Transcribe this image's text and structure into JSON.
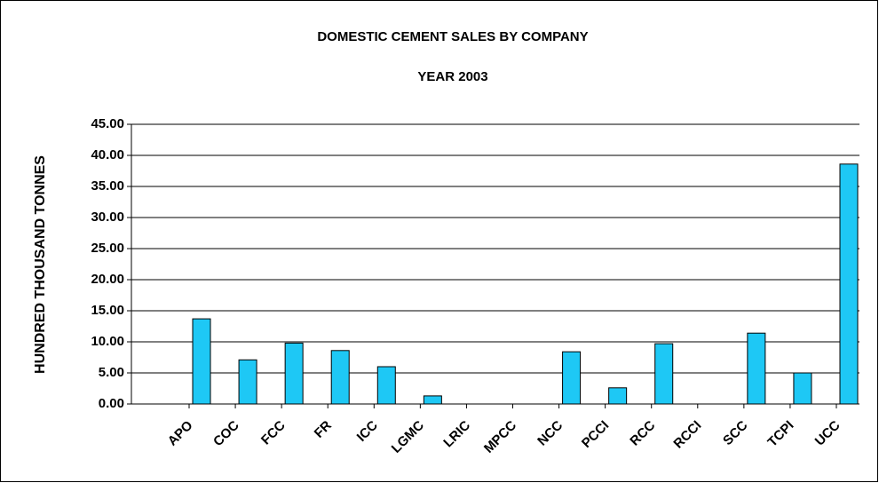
{
  "chart_data": {
    "type": "bar",
    "title": "DOMESTIC CEMENT SALES BY COMPANY",
    "subtitle": "YEAR 2003",
    "y_label": "HUNDRED THOUSAND TONNES",
    "categories": [
      "APO",
      "COC",
      "FCC",
      "FR",
      "ICC",
      "LGMC",
      "LRIC",
      "MPCC",
      "NCC",
      "PCCI",
      "RCC",
      "RCCI",
      "SCC",
      "TCPI",
      "UCC"
    ],
    "values": [
      13.7,
      7.1,
      9.8,
      8.6,
      6.0,
      1.3,
      0,
      0,
      8.4,
      2.6,
      9.7,
      0,
      11.4,
      5.0,
      38.6
    ],
    "color": "#1ec8f5",
    "ylim": [
      0,
      45
    ],
    "yticks": [
      {
        "value": 0,
        "label": "0.00"
      },
      {
        "value": 5,
        "label": "5.00"
      },
      {
        "value": 10,
        "label": "10.00"
      },
      {
        "value": 15,
        "label": "15.00"
      },
      {
        "value": 20,
        "label": "20.00"
      },
      {
        "value": 25,
        "label": "25.00"
      },
      {
        "value": 30,
        "label": "30.00"
      },
      {
        "value": 35,
        "label": "35.00"
      },
      {
        "value": 40,
        "label": "40.00"
      },
      {
        "value": 45,
        "label": "45.00"
      }
    ],
    "grid": true
  }
}
